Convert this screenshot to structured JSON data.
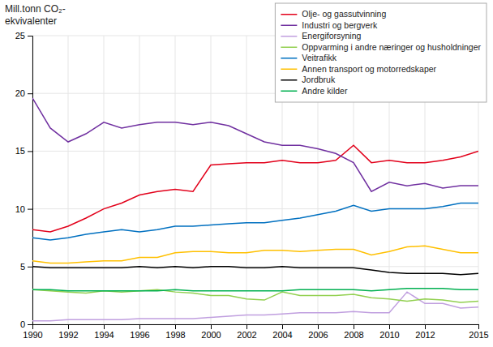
{
  "chart_data": {
    "type": "line",
    "ylabel": [
      "Mill.tonn  CO₂-",
      "ekvivalenter"
    ],
    "x": [
      1990,
      1991,
      1992,
      1993,
      1994,
      1995,
      1996,
      1997,
      1998,
      1999,
      2000,
      2001,
      2002,
      2003,
      2004,
      2005,
      2006,
      2007,
      2008,
      2009,
      2010,
      2011,
      2012,
      2013,
      2014,
      2015
    ],
    "series": [
      {
        "name": "Olje- og gassutvinning",
        "color": "#e2001a",
        "values": [
          8.2,
          8.0,
          8.5,
          9.2,
          10.0,
          10.5,
          11.2,
          11.5,
          11.7,
          11.5,
          13.8,
          13.9,
          14.0,
          14.0,
          14.2,
          14.0,
          14.0,
          14.2,
          15.5,
          14.0,
          14.2,
          14.0,
          14.0,
          14.2,
          14.5,
          15.0
        ]
      },
      {
        "name": "Industri og bergverk",
        "color": "#7030a0",
        "values": [
          19.6,
          17.0,
          15.8,
          16.5,
          17.5,
          17.0,
          17.3,
          17.5,
          17.5,
          17.3,
          17.5,
          17.2,
          16.5,
          15.8,
          15.5,
          15.5,
          15.2,
          14.8,
          14.0,
          11.5,
          12.3,
          12.0,
          12.2,
          11.8,
          12.0,
          12.0
        ]
      },
      {
        "name": "Energiforsyning",
        "color": "#c09fdf",
        "values": [
          0.3,
          0.3,
          0.4,
          0.4,
          0.4,
          0.4,
          0.5,
          0.5,
          0.5,
          0.5,
          0.6,
          0.7,
          0.8,
          0.8,
          0.9,
          1.0,
          1.0,
          1.0,
          1.1,
          1.0,
          1.0,
          2.8,
          1.8,
          1.8,
          1.4,
          1.5
        ]
      },
      {
        "name": "Oppvarming i andre næringer og husholdninger",
        "color": "#92d050",
        "values": [
          3.0,
          2.9,
          2.8,
          2.7,
          2.9,
          2.8,
          2.9,
          3.0,
          2.8,
          2.7,
          2.5,
          2.5,
          2.2,
          2.1,
          2.8,
          2.5,
          2.5,
          2.5,
          2.6,
          2.3,
          2.2,
          2.0,
          2.2,
          2.1,
          1.9,
          2.0
        ]
      },
      {
        "name": "Veitrafikk",
        "color": "#0070c0",
        "values": [
          7.5,
          7.3,
          7.5,
          7.8,
          8.0,
          8.2,
          8.0,
          8.2,
          8.5,
          8.5,
          8.6,
          8.7,
          8.8,
          8.8,
          9.0,
          9.2,
          9.5,
          9.8,
          10.3,
          9.8,
          10.0,
          10.0,
          10.0,
          10.2,
          10.5,
          10.5
        ]
      },
      {
        "name": "Annen transport og motorredskaper",
        "color": "#ffc000",
        "values": [
          5.5,
          5.3,
          5.3,
          5.4,
          5.5,
          5.5,
          5.8,
          5.8,
          6.2,
          6.3,
          6.3,
          6.2,
          6.2,
          6.4,
          6.4,
          6.3,
          6.4,
          6.5,
          6.5,
          6.0,
          6.3,
          6.7,
          6.8,
          6.5,
          6.2,
          6.2
        ]
      },
      {
        "name": "Jordbruk",
        "color": "#000000",
        "values": [
          5.0,
          4.9,
          4.9,
          4.9,
          4.9,
          4.9,
          5.0,
          4.9,
          5.0,
          4.9,
          5.0,
          5.0,
          4.9,
          4.9,
          5.0,
          4.9,
          4.9,
          4.9,
          4.9,
          4.7,
          4.5,
          4.4,
          4.4,
          4.4,
          4.3,
          4.4
        ]
      },
      {
        "name": "Andre kilder",
        "color": "#00b050",
        "values": [
          3.0,
          3.0,
          2.9,
          2.9,
          2.9,
          2.9,
          2.9,
          2.9,
          3.0,
          2.9,
          2.9,
          2.9,
          2.9,
          2.9,
          2.9,
          3.0,
          3.0,
          3.0,
          3.0,
          2.9,
          3.0,
          3.1,
          3.1,
          3.1,
          3.0,
          3.0
        ]
      }
    ],
    "xlim": [
      1990,
      2015
    ],
    "xticks": [
      1990,
      1992,
      1994,
      1996,
      1998,
      2000,
      2002,
      2004,
      2006,
      2008,
      2010,
      2012,
      2015
    ],
    "ylim": [
      0,
      25
    ],
    "yticks": [
      0,
      5,
      10,
      15,
      20,
      25
    ],
    "grid": true,
    "legend": "upper right"
  }
}
